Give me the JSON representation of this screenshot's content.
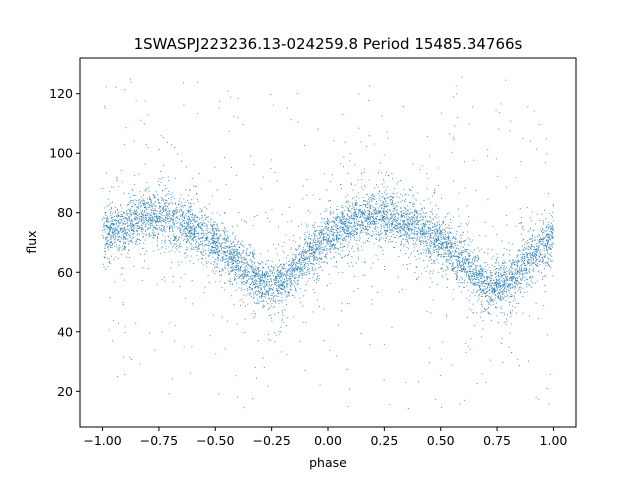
{
  "chart_data": {
    "type": "scatter",
    "title": "1SWASPJ223236.13-024259.8 Period 15485.34766s",
    "xlabel": "phase",
    "ylabel": "flux",
    "xlim": [
      -1.1,
      1.1
    ],
    "ylim": [
      8,
      132
    ],
    "x_ticks": [
      -1.0,
      -0.75,
      -0.5,
      -0.25,
      0.0,
      0.25,
      0.5,
      0.75,
      1.0
    ],
    "x_tick_labels": [
      "−1.00",
      "−0.75",
      "−0.50",
      "−0.25",
      "0.00",
      "0.25",
      "0.50",
      "0.75",
      "1.00"
    ],
    "y_ticks": [
      20,
      40,
      60,
      80,
      100,
      120
    ],
    "y_tick_labels": [
      "20",
      "40",
      "60",
      "80",
      "100",
      "120"
    ],
    "grid": false,
    "legend": "none",
    "marker_color": "#1f77b4",
    "series": [
      {
        "x_range": [
          -1.0,
          1.0
        ],
        "profile": {
          "phase": [
            -1.0,
            -0.9,
            -0.8,
            -0.75,
            -0.6,
            -0.5,
            -0.4,
            -0.3,
            -0.25,
            -0.2,
            -0.1,
            0.0,
            0.1,
            0.2,
            0.25,
            0.3,
            0.4,
            0.5,
            0.6,
            0.7,
            0.75,
            0.8,
            0.9,
            1.0
          ],
          "flux": [
            72,
            76,
            79,
            79,
            75,
            70,
            63,
            56,
            55,
            57,
            65,
            72,
            76,
            79,
            79,
            78,
            75,
            70,
            63,
            56,
            55,
            57,
            65,
            72
          ]
        },
        "scatter_std": 4,
        "outlier_range": [
          14,
          126
        ]
      }
    ]
  }
}
